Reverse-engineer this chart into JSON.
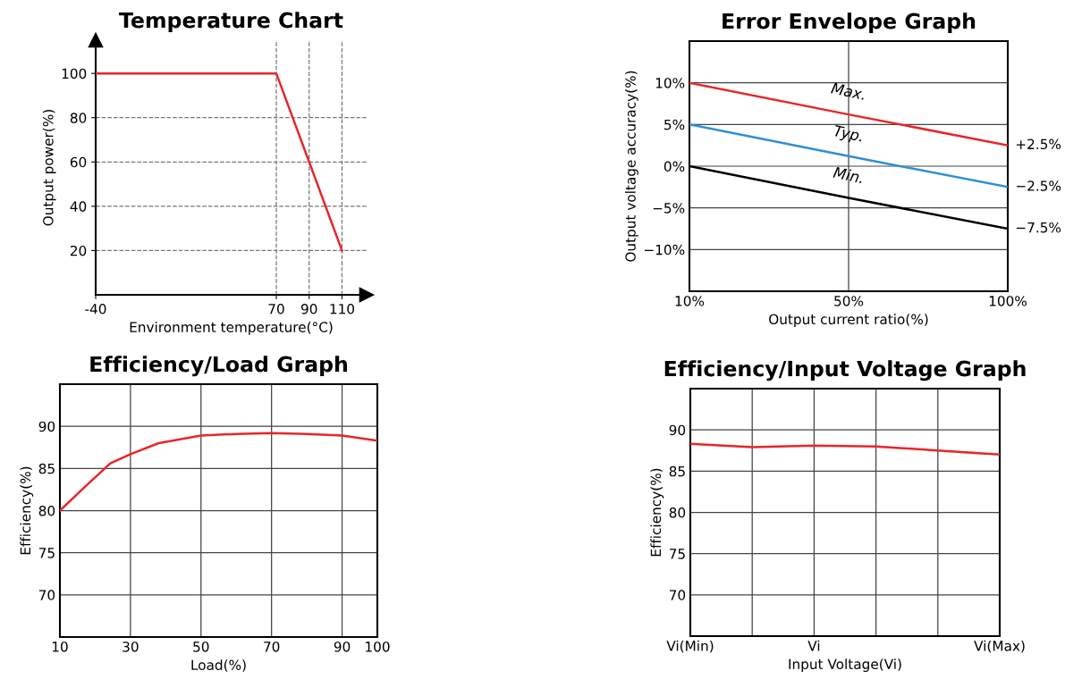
{
  "chart_data": [
    {
      "type": "line",
      "title": "Temperature Chart",
      "xlabel": "Environment temperature(°C)",
      "ylabel": "Output power(%)",
      "x": [
        -40,
        70,
        90,
        110
      ],
      "series": [
        {
          "color": "#e8262a",
          "values": [
            100,
            100,
            60,
            20
          ]
        }
      ],
      "xlim": [
        -40,
        125
      ],
      "ylim": [
        0,
        115
      ],
      "xticks": [
        -40,
        70,
        90,
        110
      ],
      "yticks": [
        20,
        40,
        60,
        80,
        100
      ],
      "ref_lines": [
        {
          "axis": "y",
          "value": 20,
          "color": "#777777",
          "line_style": "dashed"
        },
        {
          "axis": "y",
          "value": 40,
          "color": "#777777",
          "line_style": "dashed"
        },
        {
          "axis": "y",
          "value": 60,
          "color": "#777777",
          "line_style": "dashed"
        },
        {
          "axis": "y",
          "value": 80,
          "color": "#777777",
          "line_style": "dashed"
        },
        {
          "axis": "x",
          "value": 70,
          "color": "#777777",
          "line_style": "dashed"
        },
        {
          "axis": "x",
          "value": 90,
          "color": "#777777",
          "line_style": "dashed"
        },
        {
          "axis": "x",
          "value": 110,
          "color": "#777777",
          "line_style": "dashed"
        }
      ],
      "grid": false,
      "legend": false,
      "marker": "none",
      "line_style": "solid"
    },
    {
      "type": "line",
      "title": "Error Envelope Graph",
      "xlabel": "Output current ratio(%)",
      "ylabel": "Output voltage accuracy(%)",
      "categories": [
        "10%",
        "50%",
        "100%"
      ],
      "series": [
        {
          "name": "Max.",
          "color": "#e8262a",
          "values": [
            10,
            6.2,
            2.5
          ]
        },
        {
          "name": "Typ.",
          "color": "#2e8fd6",
          "values": [
            5,
            1.2,
            -2.5
          ]
        },
        {
          "name": "Min.",
          "color": "#000000",
          "values": [
            0,
            -3.8,
            -7.5
          ]
        }
      ],
      "ylim": [
        -15,
        15
      ],
      "yticks": [
        {
          "value": -10,
          "label": "−10%"
        },
        {
          "value": -5,
          "label": "−5%"
        },
        {
          "value": 0,
          "label": "0%"
        },
        {
          "value": 5,
          "label": "5%"
        },
        {
          "value": 10,
          "label": "10%"
        }
      ],
      "annotations": [
        {
          "text": "+2.5%",
          "x": "100%",
          "y": 2.5
        },
        {
          "text": "−2.5%",
          "x": "100%",
          "y": -2.5
        },
        {
          "text": "−7.5%",
          "x": "100%",
          "y": -7.5
        }
      ],
      "grid": true,
      "legend": false,
      "marker": "none",
      "line_style": "solid"
    },
    {
      "type": "line",
      "title": "Efficiency/Load Graph",
      "xlabel": "Load(%)",
      "ylabel": "Efficiency(%)",
      "x": [
        10,
        17.3,
        24.3,
        30,
        38,
        50,
        60,
        70,
        80,
        90,
        100
      ],
      "series": [
        {
          "color": "#e8262a",
          "values": [
            80,
            82.9,
            85.6,
            86.7,
            88.0,
            88.9,
            89.1,
            89.2,
            89.1,
            88.9,
            88.3
          ]
        }
      ],
      "xlim": [
        10,
        100
      ],
      "ylim": [
        65,
        95
      ],
      "xticks": [
        10,
        30,
        50,
        70,
        90,
        100
      ],
      "yticks": [
        70,
        75,
        80,
        85,
        90
      ],
      "grid": true,
      "legend": false,
      "marker": "none",
      "line_style": "solid"
    },
    {
      "type": "line",
      "title": "Efficiency/Input Voltage Graph",
      "xlabel": "Input Voltage(Vi)",
      "ylabel": "Efficiency(%)",
      "categories": [
        "Vi(Min)",
        null,
        "Vi",
        null,
        null,
        "Vi(Max)"
      ],
      "series": [
        {
          "color": "#e8262a",
          "values": [
            88.3,
            87.9,
            88.1,
            88.0,
            87.5,
            87.0
          ]
        }
      ],
      "ylim": [
        65,
        95
      ],
      "yticks": [
        70,
        75,
        80,
        85,
        90
      ],
      "grid": true,
      "legend": false,
      "marker": "none",
      "line_style": "solid"
    }
  ]
}
